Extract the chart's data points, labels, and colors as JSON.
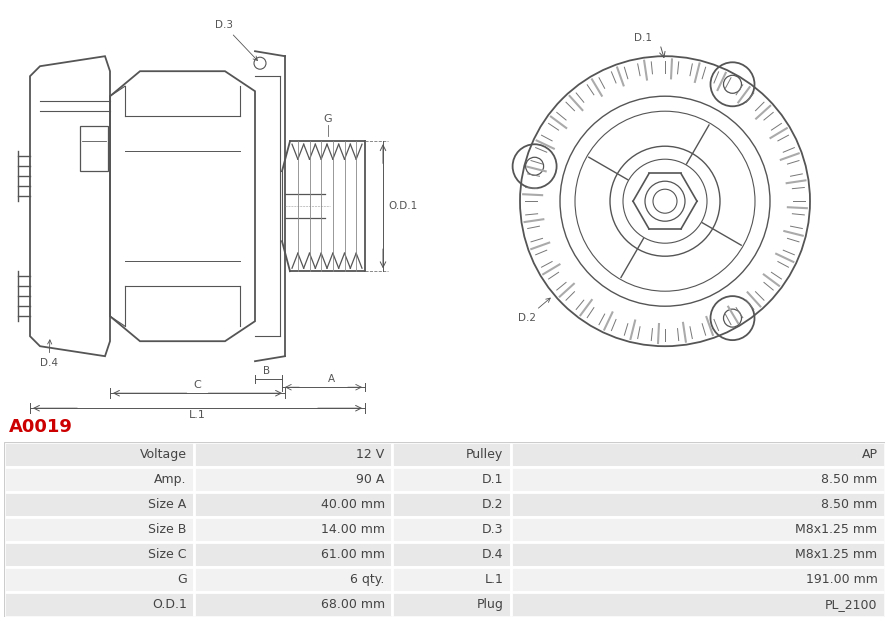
{
  "title": "A0019",
  "title_color": "#cc0000",
  "bg_color": "#ffffff",
  "table_rows": [
    [
      "Voltage",
      "12 V",
      "Pulley",
      "AP"
    ],
    [
      "Amp.",
      "90 A",
      "D.1",
      "8.50 mm"
    ],
    [
      "Size A",
      "40.00 mm",
      "D.2",
      "8.50 mm"
    ],
    [
      "Size B",
      "14.00 mm",
      "D.3",
      "M8x1.25 mm"
    ],
    [
      "Size C",
      "61.00 mm",
      "D.4",
      "M8x1.25 mm"
    ],
    [
      "G",
      "6 qty.",
      "L.1",
      "191.00 mm"
    ],
    [
      "O.D.1",
      "68.00 mm",
      "Plug",
      "PL_2100"
    ]
  ],
  "row_bg_odd": "#e8e8e8",
  "row_bg_even": "#f2f2f2",
  "border_color": "#ffffff",
  "text_color": "#444444",
  "font_size": 9,
  "lc": "#555555",
  "lw_main": 1.3,
  "lw_dim": 0.7
}
